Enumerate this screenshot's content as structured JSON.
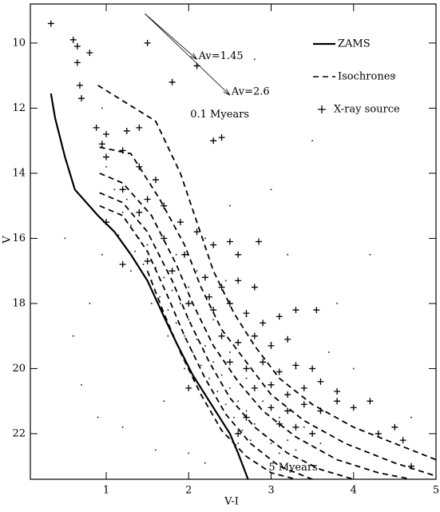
{
  "chart_data": {
    "type": "scatter",
    "x_label": "V-I",
    "y_label": "V",
    "xlim": [
      0.08,
      5
    ],
    "ylim": [
      8.8,
      23.4
    ],
    "y_inverted": true,
    "xticks": [
      1,
      2,
      3,
      4,
      5
    ],
    "yticks": [
      10,
      12,
      14,
      16,
      18,
      20,
      22
    ],
    "legend_position": "upper right",
    "field_stars": {
      "color": "#333333",
      "x": [
        1.2,
        1.3,
        1.4,
        1.15,
        1.35,
        1.5,
        1.45,
        1.6,
        1.55,
        1.7,
        1.65,
        1.8,
        1.75,
        1.9,
        1.85,
        2.0,
        1.95,
        2.1,
        2.05,
        2.2,
        2.15,
        2.3,
        2.25,
        2.4,
        2.35,
        2.5,
        2.45,
        2.6,
        2.55,
        2.7,
        2.65,
        2.8,
        2.75,
        2.9,
        2.85,
        3.0,
        3.1,
        3.2,
        3.3,
        1.3,
        1.55,
        1.75,
        1.95,
        2.15,
        2.4,
        2.6,
        2.0,
        2.3,
        2.5,
        2.7,
        2.9,
        3.1,
        3.4,
        3.6,
        1.1,
        1.25,
        1.0,
        0.95,
        0.8,
        0.7,
        0.9,
        0.6,
        1.2,
        1.6,
        3.8,
        4.2,
        3.5,
        4.5,
        3.0,
        2.8,
        4.0,
        4.7,
        1.7,
        2.0,
        2.2,
        0.5,
        0.95,
        2.5,
        3.2,
        3.7,
        2.2,
        2.45,
        2.7,
        3.3,
        3.0,
        1.4,
        1.85,
        2.1
      ],
      "y": [
        15.2,
        15.6,
        16.0,
        15.9,
        16.4,
        16.2,
        16.8,
        16.9,
        17.3,
        17.2,
        17.8,
        17.6,
        18.2,
        18.0,
        18.6,
        18.5,
        19.0,
        19.1,
        19.5,
        19.3,
        19.9,
        19.8,
        20.3,
        20.2,
        20.7,
        20.6,
        21.1,
        21.0,
        21.5,
        21.3,
        21.9,
        21.7,
        22.2,
        22.0,
        22.5,
        22.3,
        22.6,
        22.2,
        22.5,
        17.0,
        18.0,
        19.0,
        20.0,
        20.8,
        21.6,
        22.3,
        17.5,
        18.5,
        19.5,
        20.3,
        21.0,
        21.5,
        21.8,
        22.3,
        14.5,
        14.8,
        13.8,
        16.5,
        18.0,
        20.5,
        21.5,
        19.0,
        21.8,
        22.5,
        18.0,
        16.5,
        13.0,
        11.0,
        14.5,
        10.5,
        20.0,
        21.5,
        21.0,
        22.6,
        22.9,
        16.0,
        12.0,
        15.0,
        16.5,
        19.5,
        16.0,
        17.3,
        18.4,
        20.0,
        19.2,
        15.3,
        16.5,
        17.0
      ]
    },
    "series": [
      {
        "name": "ZAMS",
        "color": "#000000",
        "x": [
          0.33,
          0.38,
          0.5,
          0.62,
          0.9,
          1.1,
          1.3,
          1.5,
          1.7,
          1.85,
          2.05,
          2.3,
          2.5,
          2.6,
          2.72
        ],
        "y": [
          11.55,
          12.3,
          13.5,
          14.5,
          15.3,
          15.8,
          16.5,
          17.3,
          18.4,
          19.2,
          20.2,
          21.2,
          22.0,
          22.6,
          23.4
        ]
      },
      {
        "name": "Isochrones",
        "color": "#000000",
        "lines": [
          {
            "x": [
              0.9,
              1.6,
              1.9,
              2.1,
              2.3,
              2.55,
              2.8,
              3.1,
              3.5,
              4.0,
              4.6,
              5.0
            ],
            "y": [
              11.3,
              12.4,
              14.0,
              15.5,
              17.0,
              18.3,
              19.3,
              20.3,
              21.1,
              21.8,
              22.4,
              22.8
            ]
          },
          {
            "x": [
              0.92,
              1.3,
              1.65,
              1.95,
              2.15,
              2.4,
              2.7,
              3.0,
              3.4,
              3.9,
              4.5,
              5.0
            ],
            "y": [
              13.2,
              13.4,
              14.8,
              16.2,
              17.5,
              18.8,
              19.8,
              20.8,
              21.6,
              22.3,
              22.9,
              23.3
            ]
          },
          {
            "x": [
              0.92,
              1.2,
              1.55,
              1.85,
              2.05,
              2.3,
              2.6,
              2.9,
              3.3,
              3.8,
              4.3,
              4.7
            ],
            "y": [
              14.0,
              14.3,
              15.3,
              16.8,
              18.0,
              19.3,
              20.4,
              21.3,
              22.1,
              22.8,
              23.2,
              23.4
            ]
          },
          {
            "x": [
              0.92,
              1.2,
              1.5,
              1.8,
              2.0,
              2.25,
              2.5,
              2.8,
              3.2,
              3.6,
              4.0
            ],
            "y": [
              14.6,
              14.9,
              15.8,
              17.3,
              18.5,
              19.8,
              20.9,
              21.8,
              22.6,
              23.1,
              23.4
            ]
          },
          {
            "x": [
              0.92,
              1.2,
              1.5,
              1.75,
              1.95,
              2.2,
              2.45,
              2.75,
              3.1,
              3.5
            ],
            "y": [
              15.0,
              15.3,
              16.4,
              17.8,
              19.0,
              20.3,
              21.4,
              22.3,
              23.0,
              23.4
            ]
          },
          {
            "x": [
              1.5,
              1.7,
              1.9,
              2.15,
              2.4,
              2.7,
              3.0,
              3.3
            ],
            "y": [
              17.0,
              18.3,
              19.5,
              20.8,
              21.9,
              22.7,
              23.2,
              23.4
            ]
          }
        ]
      },
      {
        "name": "X-ray source",
        "color": "#000000",
        "x": [
          0.33,
          0.6,
          0.65,
          0.65,
          0.8,
          1.5,
          0.68,
          0.7,
          1.8,
          2.1,
          0.88,
          0.95,
          1.0,
          1.25,
          1.4,
          2.3,
          2.4,
          1.0,
          1.2,
          1.4,
          1.6,
          1.2,
          1.5,
          1.7,
          1.4,
          1.9,
          1.7,
          2.1,
          2.3,
          2.5,
          2.6,
          2.85,
          1.5,
          1.8,
          2.2,
          2.4,
          2.6,
          2.8,
          2.0,
          2.3,
          2.5,
          2.7,
          2.9,
          3.1,
          3.3,
          2.4,
          2.6,
          2.8,
          3.0,
          3.2,
          2.5,
          2.7,
          2.9,
          3.1,
          3.3,
          3.5,
          2.8,
          3.0,
          3.2,
          3.4,
          3.6,
          3.8,
          3.0,
          3.2,
          3.4,
          3.6,
          3.8,
          4.0,
          4.2,
          3.3,
          3.5,
          3.1,
          2.7,
          4.5,
          4.6,
          4.7,
          4.3,
          2.6,
          1.2,
          1.0,
          2.0,
          1.95,
          2.25,
          3.55
        ],
        "y": [
          9.4,
          9.9,
          10.1,
          10.6,
          10.3,
          10.0,
          11.3,
          11.7,
          11.2,
          10.7,
          12.6,
          13.1,
          12.8,
          12.7,
          12.6,
          13.0,
          12.9,
          13.5,
          13.3,
          13.8,
          14.2,
          14.5,
          14.8,
          15.0,
          15.2,
          15.5,
          16.0,
          15.8,
          16.2,
          16.1,
          16.5,
          16.1,
          16.7,
          17.0,
          17.2,
          17.5,
          17.3,
          17.5,
          18.0,
          18.2,
          18.0,
          18.3,
          18.6,
          18.4,
          18.2,
          19.0,
          19.2,
          19.0,
          19.3,
          19.1,
          19.8,
          20.0,
          19.8,
          20.1,
          19.9,
          20.0,
          20.6,
          20.5,
          20.8,
          20.6,
          20.4,
          20.7,
          21.2,
          21.3,
          21.1,
          21.3,
          21.0,
          21.2,
          21.0,
          21.8,
          22.0,
          21.7,
          21.5,
          21.8,
          22.2,
          23.0,
          22.0,
          22.0,
          16.8,
          15.5,
          20.6,
          16.5,
          17.8,
          18.2
        ]
      }
    ],
    "reddening_vectors": [
      {
        "label": "Av=1.45",
        "x": [
          1.47,
          2.1
        ],
        "y": [
          9.1,
          10.5
        ]
      },
      {
        "label": "Av=2.6",
        "x": [
          1.47,
          2.5
        ],
        "y": [
          9.1,
          11.6
        ]
      }
    ],
    "annotations": [
      {
        "text": "0.1 Myears",
        "x": 2.0,
        "y": 12.2
      },
      {
        "text": "5 Myears",
        "x": 2.95,
        "y": 23.05
      }
    ]
  }
}
